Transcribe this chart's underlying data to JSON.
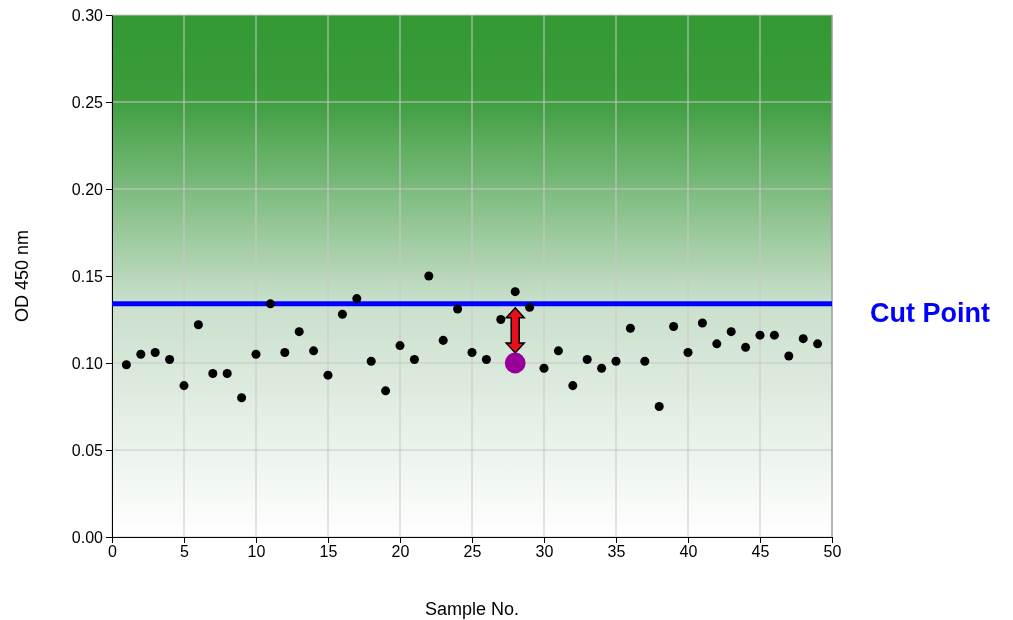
{
  "chart_data": {
    "type": "scatter",
    "xlabel": "Sample No.",
    "ylabel": "OD 450 nm",
    "x": [
      1,
      2,
      3,
      4,
      5,
      6,
      7,
      8,
      9,
      10,
      11,
      12,
      13,
      14,
      15,
      16,
      17,
      18,
      19,
      20,
      21,
      22,
      23,
      24,
      25,
      26,
      27,
      28,
      29,
      30,
      31,
      32,
      33,
      34,
      35,
      36,
      37,
      38,
      39,
      40,
      41,
      42,
      43,
      44,
      45,
      46,
      47,
      48,
      49
    ],
    "series": [
      {
        "color": "#000000",
        "values": [
          0.099,
          0.105,
          0.106,
          0.102,
          0.087,
          0.122,
          0.094,
          0.094,
          0.08,
          0.105,
          0.134,
          0.106,
          0.118,
          0.107,
          0.093,
          0.128,
          0.137,
          0.101,
          0.084,
          0.11,
          0.102,
          0.15,
          0.113,
          0.131,
          0.106,
          0.102,
          0.125,
          0.141,
          0.132,
          0.097,
          0.107,
          0.087,
          0.102,
          0.097,
          0.101,
          0.12,
          0.101,
          0.075,
          0.121,
          0.106,
          0.123,
          0.111,
          0.118,
          0.109,
          0.116,
          0.116,
          0.104,
          0.114,
          0.111
        ]
      },
      {
        "color": "#990099",
        "x": [
          28
        ],
        "values": [
          0.1
        ]
      }
    ],
    "xlim": [
      0,
      50
    ],
    "xticks": [
      0,
      5,
      10,
      15,
      20,
      25,
      30,
      35,
      40,
      45,
      50
    ],
    "ylim": [
      0,
      0.3
    ],
    "yticks": [
      {
        "value": 0,
        "label": "0.00"
      },
      {
        "value": 0.05,
        "label": "0.05"
      },
      {
        "value": 0.1,
        "label": "0.10"
      },
      {
        "value": 0.15,
        "label": "0.15"
      },
      {
        "value": 0.2,
        "label": "0.20"
      },
      {
        "value": 0.25,
        "label": "0.25"
      },
      {
        "value": 0.3,
        "label": "0.30"
      }
    ],
    "grid": true,
    "marker": "circle",
    "ref_lines": [
      {
        "axis": "y",
        "value": 0.134,
        "label": "Cut Point",
        "color": "#0000ff"
      }
    ]
  }
}
